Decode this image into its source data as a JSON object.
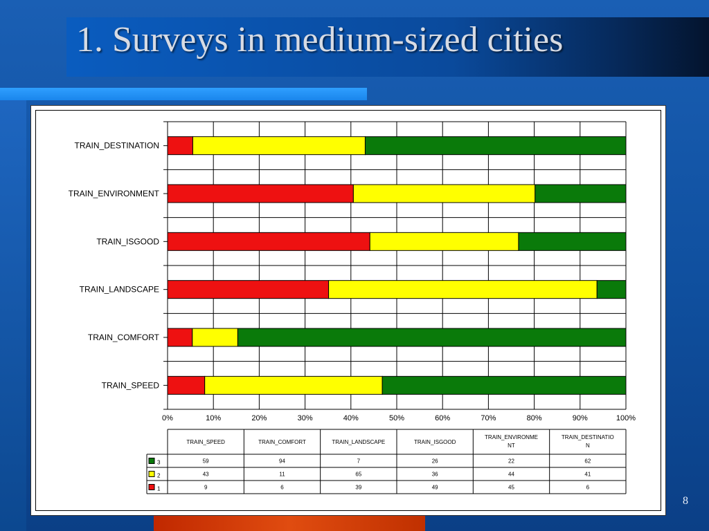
{
  "slide": {
    "title": "1. Surveys in medium-sized cities",
    "page_number": "8"
  },
  "colors": {
    "series_1": "#ee1111",
    "series_2": "#ffff00",
    "series_3": "#0a7a0a"
  },
  "chart_data": {
    "type": "bar",
    "orientation": "horizontal",
    "stacked": "100%",
    "categories": [
      "TRAIN_SPEED",
      "TRAIN_COMFORT",
      "TRAIN_LANDSCAPE",
      "TRAIN_ISGOOD",
      "TRAIN_ENVIRONMENT",
      "TRAIN_DESTINATION"
    ],
    "axis_tick_labels": [
      "0%",
      "10%",
      "20%",
      "30%",
      "40%",
      "50%",
      "60%",
      "70%",
      "80%",
      "90%",
      "100%"
    ],
    "xlim": [
      0,
      100
    ],
    "grid": true,
    "series": [
      {
        "name": "1",
        "values": [
          9,
          6,
          39,
          49,
          45,
          6
        ]
      },
      {
        "name": "2",
        "values": [
          43,
          11,
          65,
          36,
          44,
          41
        ]
      },
      {
        "name": "3",
        "values": [
          59,
          94,
          7,
          26,
          22,
          62
        ]
      }
    ],
    "table": {
      "headers": [
        "TRAIN_SPEED",
        "TRAIN_COMFORT",
        "TRAIN_LANDSCAPE",
        "TRAIN_ISGOOD",
        "TRAIN_ENVIRONME NT",
        "TRAIN_DESTINATIO N"
      ],
      "rows": [
        {
          "legend": "3",
          "values": [
            "59",
            "94",
            "7",
            "26",
            "22",
            "62"
          ]
        },
        {
          "legend": "2",
          "values": [
            "43",
            "11",
            "65",
            "36",
            "44",
            "41"
          ]
        },
        {
          "legend": "1",
          "values": [
            "9",
            "6",
            "39",
            "49",
            "45",
            "6"
          ]
        }
      ]
    }
  }
}
